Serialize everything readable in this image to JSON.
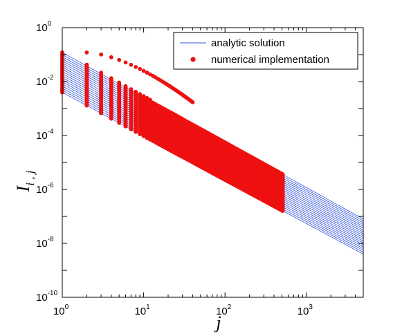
{
  "chart_data": {
    "type": "line",
    "xlabel": "j",
    "ylabel": "I",
    "ylabel_subscript": "i , j",
    "xscale": "log",
    "yscale": "log",
    "xlim": [
      1,
      5000
    ],
    "ylim": [
      1e-10,
      1
    ],
    "grid": false,
    "legend": {
      "placement": "top-right",
      "entries": [
        {
          "label": "analytic solution",
          "style": "line",
          "color": "#3355dd"
        },
        {
          "label": "numerical implementation",
          "style": "marker",
          "color": "#ee1111"
        }
      ]
    },
    "x_ticks": [
      {
        "base": "10",
        "exp": "0",
        "value": 1
      },
      {
        "base": "10",
        "exp": "1",
        "value": 10
      },
      {
        "base": "10",
        "exp": "2",
        "value": 100
      },
      {
        "base": "10",
        "exp": "3",
        "value": 1000
      }
    ],
    "y_ticks": [
      {
        "base": "10",
        "exp": "0",
        "value": 1
      },
      {
        "base": "10",
        "exp": "-2",
        "value": 0.01
      },
      {
        "base": "10",
        "exp": "-4",
        "value": 0.0001
      },
      {
        "base": "10",
        "exp": "-6",
        "value": 1e-06
      },
      {
        "base": "10",
        "exp": "-8",
        "value": 1e-08
      },
      {
        "base": "10",
        "exp": "-10",
        "value": 1e-10
      }
    ],
    "series_family": {
      "count": 20,
      "analytic_x_range": [
        1,
        5000
      ],
      "numerical_x_range": [
        1,
        512
      ],
      "y_at_j1_top": 0.12,
      "y_at_j1_bottom": 0.004,
      "y_at_j5000_top": 8e-08,
      "y_at_j5000_bottom": 4e-09,
      "upper_curve_peak_y": 0.12
    }
  },
  "colors": {
    "analytic": "#3355dd",
    "numerical": "#ee1111",
    "axis": "#000000"
  }
}
